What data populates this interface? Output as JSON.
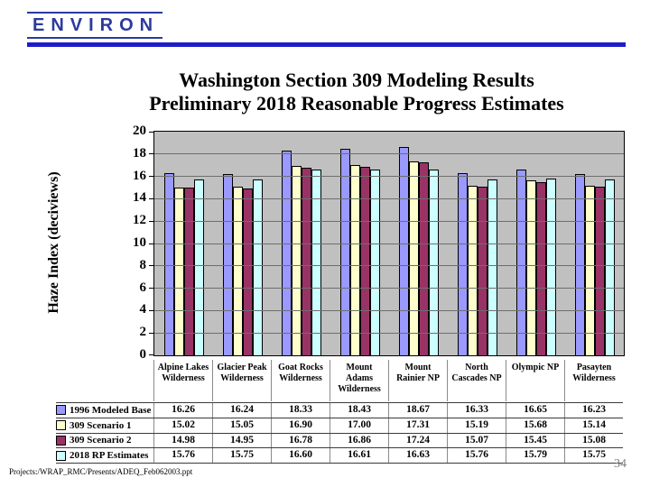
{
  "logo": {
    "text": "ENVIRON",
    "color": "#2b3a9e"
  },
  "header_rule_color": "#1d1dc8",
  "title": {
    "line1": "Washington Section 309 Modeling Results",
    "line2": "Preliminary 2018 Reasonable Progress Estimates"
  },
  "chart_data": {
    "type": "bar",
    "title": "Washington Section 309 Modeling Results Preliminary 2018 Reasonable Progress Estimates",
    "ylabel": "Haze Index (deciviews)",
    "xlabel": "",
    "ylim": [
      0,
      20
    ],
    "ytick_step": 2,
    "grid": true,
    "plot_background": "#c0c0c0",
    "gridline_color": "#6e6e6e",
    "legend_position": "bottom-table",
    "categories": [
      "Alpine Lakes Wilderness",
      "Glacier Peak Wilderness",
      "Goat Rocks Wilderness",
      "Mount Adams Wilderness",
      "Mount Rainier NP",
      "North Cascades NP",
      "Olympic NP",
      "Pasayten Wilderness"
    ],
    "series": [
      {
        "name": "1996 Modeled Base",
        "color": "#9999ff",
        "values": [
          "16.26",
          "16.24",
          "18.33",
          "18.43",
          "18.67",
          "16.33",
          "16.65",
          "16.23"
        ]
      },
      {
        "name": "309 Scenario 1",
        "color": "#ffffcc",
        "values": [
          "15.02",
          "15.05",
          "16.90",
          "17.00",
          "17.31",
          "15.19",
          "15.68",
          "15.14"
        ]
      },
      {
        "name": "309 Scenario 2",
        "color": "#993366",
        "values": [
          "14.98",
          "14.95",
          "16.78",
          "16.86",
          "17.24",
          "15.07",
          "15.45",
          "15.08"
        ]
      },
      {
        "name": "2018 RP Estimates",
        "color": "#ccffff",
        "values": [
          "15.76",
          "15.75",
          "16.60",
          "16.61",
          "16.63",
          "15.76",
          "15.79",
          "15.75"
        ]
      }
    ]
  },
  "footer": {
    "path": "Projects:/WRAP_RMC/Presents/ADEQ_Feb062003.ppt",
    "page_number": "34"
  }
}
